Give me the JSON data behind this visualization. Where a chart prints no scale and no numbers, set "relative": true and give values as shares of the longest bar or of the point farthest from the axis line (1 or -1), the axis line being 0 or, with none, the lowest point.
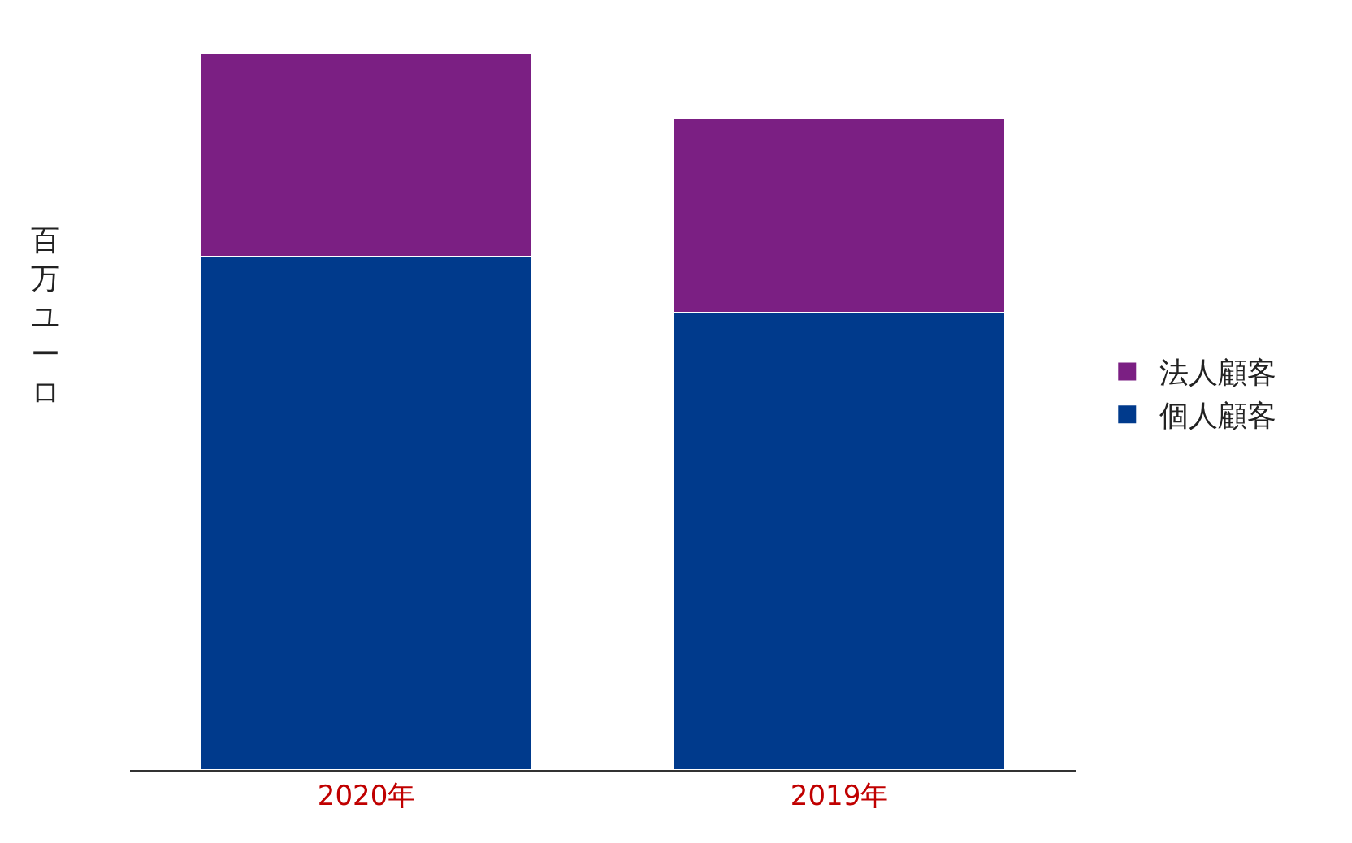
{
  "chart_data": {
    "type": "bar",
    "stacked": true,
    "relative": true,
    "ylabel": "百万ユーロ",
    "categories": [
      "2020年",
      "2019年"
    ],
    "series": [
      {
        "name": "個人顧客",
        "color": "#003a8c",
        "values": [
          0.717,
          0.639
        ]
      },
      {
        "name": "法人顧客",
        "color": "#7b1f83",
        "values": [
          0.283,
          0.272
        ]
      }
    ],
    "legend": "right"
  }
}
